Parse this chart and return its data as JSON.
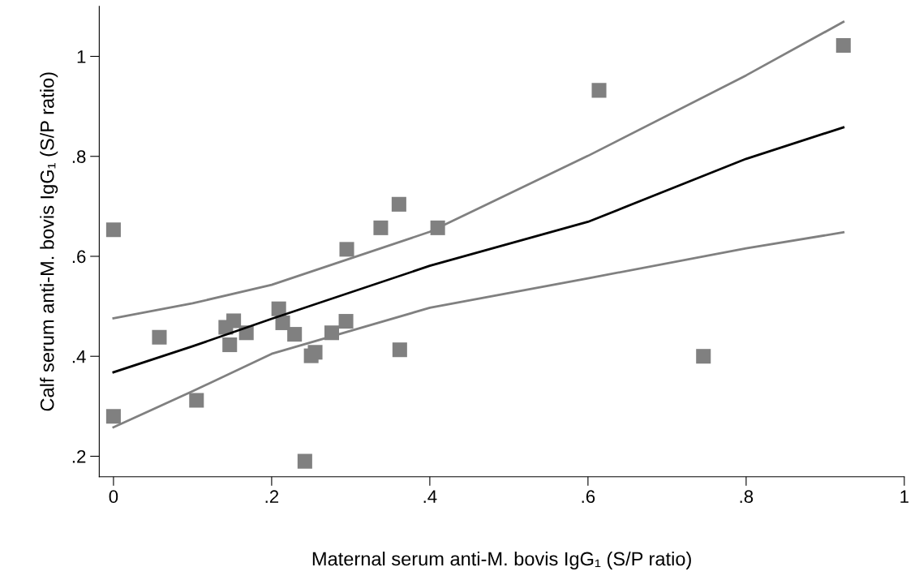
{
  "chart_data": {
    "type": "scatter",
    "xlabel": "Maternal serum anti-M. bovis IgG₁ (S/P ratio)",
    "ylabel": "Calf serum anti-M. bovis IgG₁ (S/P ratio)",
    "marker": "square",
    "grid": false,
    "legend": false,
    "xlim": [
      -0.018,
      1.0
    ],
    "ylim": [
      0.159,
      1.1
    ],
    "xticks": [
      0,
      {
        "value": 0.2,
        "label": ".2"
      },
      {
        "value": 0.4,
        "label": ".4"
      },
      {
        "value": 0.6,
        "label": ".6"
      },
      {
        "value": 0.8,
        "label": ".8"
      },
      1
    ],
    "yticks": [
      {
        "value": 0.2,
        "label": ".2"
      },
      {
        "value": 0.4,
        "label": ".4"
      },
      {
        "value": 0.6,
        "label": ".6"
      },
      {
        "value": 0.8,
        "label": ".8"
      },
      1
    ],
    "series": [
      {
        "color": "#808080",
        "x": [
          0.0,
          0.0,
          0.058,
          0.105,
          0.142,
          0.152,
          0.147,
          0.168,
          0.209,
          0.214,
          0.229,
          0.242,
          0.25,
          0.255,
          0.276,
          0.294,
          0.295,
          0.338,
          0.361,
          0.41,
          0.362,
          0.614,
          0.923,
          0.746
        ],
        "values": [
          0.653,
          0.28,
          0.438,
          0.312,
          0.458,
          0.471,
          0.423,
          0.447,
          0.495,
          0.467,
          0.444,
          0.19,
          0.401,
          0.408,
          0.447,
          0.47,
          0.614,
          0.657,
          0.704,
          0.657,
          0.413,
          0.932,
          1.022,
          0.4
        ]
      },
      {
        "type": "line",
        "color": "#808080",
        "marker": "none",
        "x": [
          0.0,
          0.1,
          0.2,
          0.4,
          0.6,
          0.8,
          0.923
        ],
        "values": [
          0.476,
          0.506,
          0.543,
          0.649,
          0.801,
          0.962,
          1.069
        ]
      },
      {
        "type": "line",
        "color": "#000000",
        "marker": "none",
        "x": [
          0.0,
          0.1,
          0.2,
          0.4,
          0.6,
          0.8,
          0.923
        ],
        "values": [
          0.368,
          0.42,
          0.475,
          0.581,
          0.669,
          0.795,
          0.858
        ]
      },
      {
        "type": "line",
        "color": "#808080",
        "marker": "none",
        "x": [
          0.0,
          0.1,
          0.2,
          0.4,
          0.6,
          0.8,
          0.923
        ],
        "values": [
          0.258,
          0.33,
          0.405,
          0.497,
          0.556,
          0.616,
          0.648
        ]
      }
    ]
  }
}
